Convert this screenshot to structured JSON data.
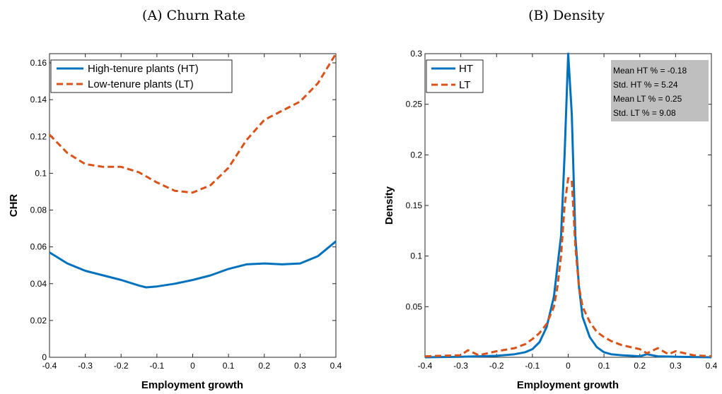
{
  "colors": {
    "ht": "#0072BD",
    "lt": "#D95319",
    "stats_bg": "#BFBFBF"
  },
  "chart_data": [
    {
      "panel": "A",
      "type": "line",
      "title": "(A) Churn Rate",
      "xlabel": "Employment growth",
      "ylabel": "CHR",
      "xlim": [
        -0.4,
        0.4
      ],
      "ylim": [
        0,
        0.165
      ],
      "xticks": [
        "-0.4",
        "-0.3",
        "-0.2",
        "-0.1",
        "0",
        "0.1",
        "0.2",
        "0.3",
        "0.4"
      ],
      "yticks": [
        "0",
        "0.02",
        "0.04",
        "0.06",
        "0.08",
        "0.1",
        "0.12",
        "0.14",
        "0.16"
      ],
      "legend_position": "top-left",
      "series": [
        {
          "name": "High-tenure plants (HT)",
          "style": "solid",
          "x": [
            -0.4,
            -0.35,
            -0.3,
            -0.25,
            -0.2,
            -0.15,
            -0.13,
            -0.1,
            -0.05,
            0,
            0.05,
            0.1,
            0.15,
            0.2,
            0.25,
            0.3,
            0.35,
            0.4
          ],
          "y": [
            0.057,
            0.051,
            0.047,
            0.0445,
            0.042,
            0.039,
            0.038,
            0.0385,
            0.04,
            0.042,
            0.0445,
            0.048,
            0.0505,
            0.051,
            0.0505,
            0.051,
            0.055,
            0.063
          ]
        },
        {
          "name": "Low-tenure plants (LT)",
          "style": "dashed",
          "x": [
            -0.4,
            -0.35,
            -0.3,
            -0.25,
            -0.2,
            -0.15,
            -0.1,
            -0.05,
            0,
            0.05,
            0.1,
            0.15,
            0.2,
            0.25,
            0.3,
            0.35,
            0.4
          ],
          "y": [
            0.121,
            0.111,
            0.105,
            0.1035,
            0.1035,
            0.1005,
            0.095,
            0.0905,
            0.0895,
            0.0935,
            0.103,
            0.118,
            0.129,
            0.134,
            0.139,
            0.149,
            0.165
          ]
        }
      ]
    },
    {
      "panel": "B",
      "type": "line",
      "title": "(B) Density",
      "xlabel": "Employment growth",
      "ylabel": "Density",
      "xlim": [
        -0.4,
        0.4
      ],
      "ylim": [
        0,
        0.3
      ],
      "xticks": [
        "-0.4",
        "-0.3",
        "-0.2",
        "-0.1",
        "0",
        "0.1",
        "0.2",
        "0.3",
        "0.4"
      ],
      "yticks": [
        "0.05",
        "0.1",
        "0.15",
        "0.2",
        "0.25",
        "0.3"
      ],
      "legend_position": "top-left",
      "stats": [
        "Mean HT % = -0.18",
        "Std. HT % = 5.24",
        "Mean LT % = 0.25",
        "Std. LT % = 9.08"
      ],
      "series": [
        {
          "name": "HT",
          "style": "solid",
          "x": [
            -0.4,
            -0.3,
            -0.25,
            -0.2,
            -0.15,
            -0.12,
            -0.1,
            -0.08,
            -0.06,
            -0.04,
            -0.03,
            -0.02,
            -0.01,
            0,
            0.01,
            0.02,
            0.03,
            0.04,
            0.06,
            0.08,
            0.1,
            0.12,
            0.15,
            0.2,
            0.22,
            0.25,
            0.3,
            0.35,
            0.4
          ],
          "y": [
            0,
            0.0005,
            0.001,
            0.0015,
            0.003,
            0.005,
            0.008,
            0.015,
            0.03,
            0.06,
            0.09,
            0.12,
            0.2,
            0.3,
            0.24,
            0.12,
            0.07,
            0.04,
            0.02,
            0.01,
            0.005,
            0.003,
            0.002,
            0.001,
            0.003,
            0.001,
            0.0005,
            0.0003,
            0
          ]
        },
        {
          "name": "LT",
          "style": "dashed",
          "x": [
            -0.4,
            -0.3,
            -0.28,
            -0.25,
            -0.2,
            -0.15,
            -0.12,
            -0.1,
            -0.08,
            -0.06,
            -0.04,
            -0.03,
            -0.02,
            -0.01,
            0,
            0.01,
            0.02,
            0.03,
            0.04,
            0.06,
            0.08,
            0.1,
            0.12,
            0.15,
            0.2,
            0.22,
            0.25,
            0.28,
            0.3,
            0.35,
            0.4
          ],
          "y": [
            0.001,
            0.002,
            0.007,
            0.002,
            0.006,
            0.009,
            0.013,
            0.018,
            0.024,
            0.033,
            0.05,
            0.07,
            0.1,
            0.15,
            0.177,
            0.175,
            0.11,
            0.07,
            0.05,
            0.035,
            0.025,
            0.02,
            0.016,
            0.012,
            0.008,
            0.004,
            0.009,
            0.003,
            0.006,
            0.002,
            0.001
          ]
        }
      ]
    }
  ]
}
